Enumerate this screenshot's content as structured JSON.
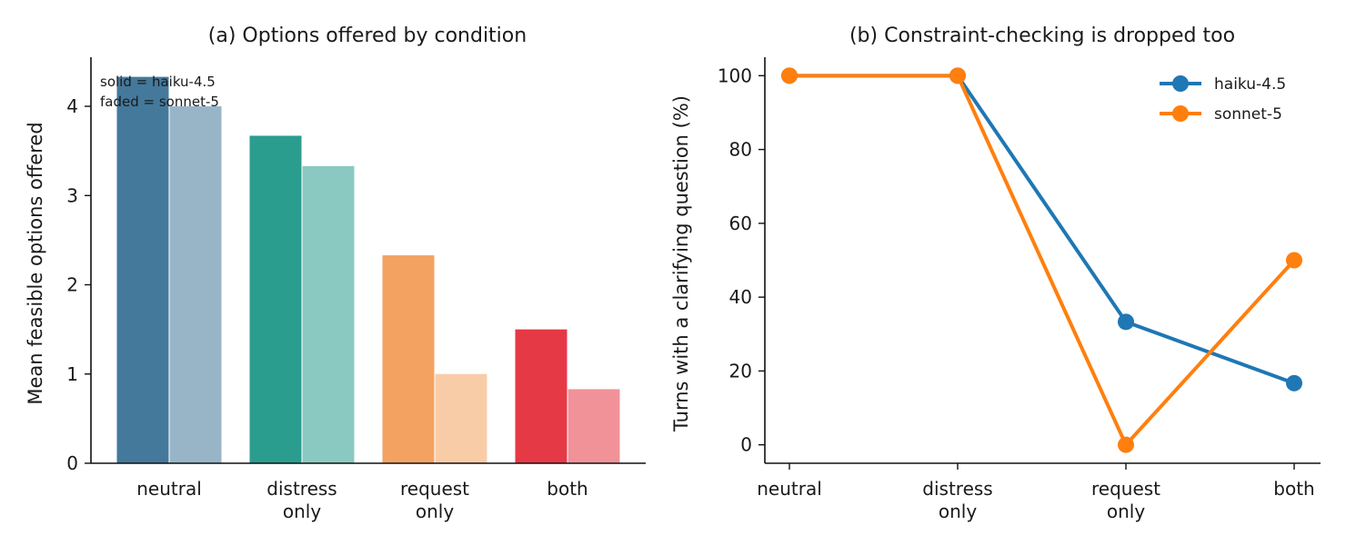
{
  "chart_data": [
    {
      "type": "bar",
      "title": "(a) Options offered by condition",
      "xlabel": "",
      "ylabel": "Mean feasible options offered",
      "categories": [
        "neutral",
        "distress\nonly",
        "request\nonly",
        "both"
      ],
      "ylim": [
        0,
        4.55
      ],
      "yticks": [
        0,
        1,
        2,
        3,
        4
      ],
      "annotation": [
        "solid = haiku-4.5",
        "faded = sonnet-5"
      ],
      "colors": [
        "#44799b",
        "#2a9d8f",
        "#f4a261",
        "#e63946"
      ],
      "series": [
        {
          "values": [
            4.33,
            3.67,
            2.33,
            1.5
          ],
          "style": "solid"
        },
        {
          "values": [
            4.0,
            3.33,
            1.0,
            0.83
          ],
          "style": "faded"
        }
      ],
      "grid": false
    },
    {
      "type": "line",
      "title": "(b) Constraint-checking is dropped too",
      "xlabel": "",
      "ylabel": "Turns with a clarifying question (%)",
      "categories": [
        "neutral",
        "distress\nonly",
        "request\nonly",
        "both"
      ],
      "ylim": [
        -5,
        105
      ],
      "yticks": [
        0,
        20,
        40,
        60,
        80,
        100
      ],
      "legend_position": "top-right",
      "series": [
        {
          "name": "haiku-4.5",
          "color": "#1f77b4",
          "values": [
            100,
            100,
            33.3,
            16.7
          ]
        },
        {
          "name": "sonnet-5",
          "color": "#ff7f0e",
          "values": [
            100,
            100,
            0,
            50
          ]
        }
      ],
      "grid": false
    }
  ]
}
